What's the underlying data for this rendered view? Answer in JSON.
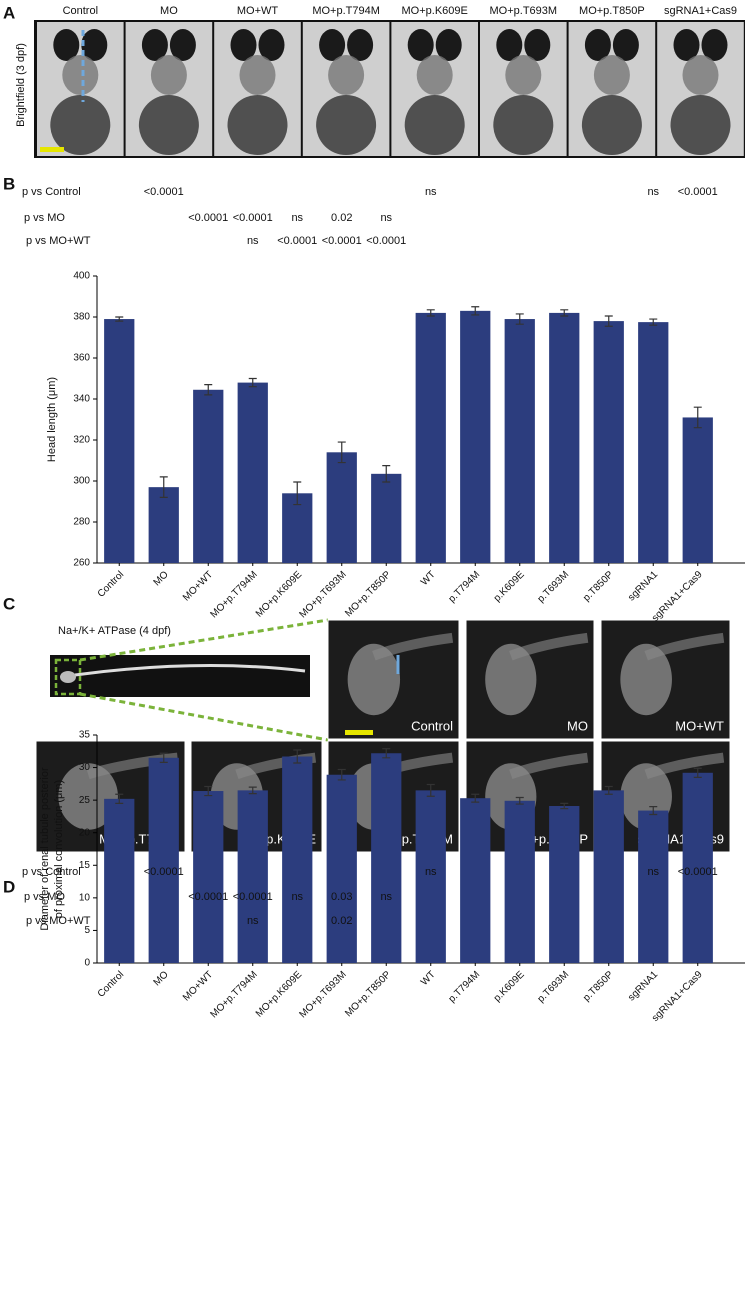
{
  "panel_a": {
    "letter": "A",
    "ylabel": "Brightfield (3 dpf)",
    "labels": [
      "Control",
      "MO",
      "MO+WT",
      "MO+p.T794M",
      "MO+p.K609E",
      "MO+p.T693M",
      "MO+p.T850P",
      "sgRNA1+Cas9"
    ]
  },
  "panel_c": {
    "letter": "C",
    "title": "Na+/K+ ATPase (4 dpf)",
    "labels": [
      "Control",
      "MO",
      "MO+WT",
      "MO+p.T794M",
      "MO+p.K609E",
      "MO+p.T693M",
      "MO+p.T850P",
      "sgRNA1+Cas9"
    ]
  },
  "chart_data": [
    {
      "type": "bar",
      "panel": "B",
      "ylabel": [
        "Head length (μm)"
      ],
      "categories": [
        "Control",
        "MO",
        "MO+WT",
        "MO+p.T794M",
        "MO+p.K609E",
        "MO+p.T693M",
        "MO+p.T850P",
        "WT",
        "p.T794M",
        "p.K609E",
        "p.T693M",
        "p.T850P",
        "sgRNA1",
        "sgRNA1+Cas9"
      ],
      "values": [
        379,
        297,
        344.5,
        348,
        294,
        314,
        303.5,
        382,
        383,
        379,
        382,
        378,
        377.5,
        331
      ],
      "errors": [
        1,
        5,
        2.5,
        2,
        5.5,
        5,
        4,
        1.5,
        2,
        2.5,
        1.5,
        2.5,
        1.5,
        5
      ],
      "color": "#2c3d7e",
      "ylim": [
        260,
        400
      ],
      "yticks": [
        260,
        280,
        300,
        320,
        340,
        360,
        380,
        400
      ],
      "p_values": [
        {
          "label": "p vs Control",
          "values": [
            null,
            "<0.0001",
            null,
            null,
            null,
            null,
            null,
            "ns",
            null,
            null,
            null,
            null,
            "ns",
            "<0.0001"
          ]
        },
        {
          "label": "p vs MO",
          "values": [
            null,
            null,
            "<0.0001",
            "<0.0001",
            "ns",
            "0.02",
            "ns",
            null,
            null,
            null,
            null,
            null,
            null,
            null
          ]
        },
        {
          "label": "p vs MO+WT",
          "values": [
            null,
            null,
            null,
            "ns",
            "<0.0001",
            "<0.0001",
            "<0.0001",
            null,
            null,
            null,
            null,
            null,
            null,
            null
          ]
        }
      ]
    },
    {
      "type": "bar",
      "panel": "D",
      "ylabel": [
        "Diameter of renal tubule posterior",
        "of proximal convolution (μm)"
      ],
      "categories": [
        "Control",
        "MO",
        "MO+WT",
        "MO+p.T794M",
        "MO+p.K609E",
        "MO+p.T693M",
        "MO+p.T850P",
        "WT",
        "p.T794M",
        "p.K609E",
        "p.T693M",
        "p.T850P",
        "sgRNA1",
        "sgRNA1+Cas9"
      ],
      "values": [
        25.2,
        31.5,
        26.4,
        26.5,
        31.7,
        28.9,
        32.2,
        26.5,
        25.3,
        24.9,
        24.1,
        26.5,
        23.4,
        29.2
      ],
      "errors": [
        0.7,
        0.7,
        0.7,
        0.5,
        1,
        0.8,
        0.7,
        0.9,
        0.6,
        0.5,
        0.4,
        0.6,
        0.6,
        0.7
      ],
      "color": "#2c3d7e",
      "ylim": [
        0,
        35
      ],
      "yticks": [
        0,
        5,
        10,
        15,
        20,
        25,
        30,
        35
      ],
      "p_values": [
        {
          "label": "p vs Control",
          "values": [
            null,
            "<0.0001",
            null,
            null,
            null,
            null,
            null,
            "ns",
            null,
            null,
            null,
            null,
            "ns",
            "<0.0001"
          ]
        },
        {
          "label": "p vs MO",
          "values": [
            null,
            null,
            "<0.0001",
            "<0.0001",
            "ns",
            "0.03",
            "ns",
            null,
            null,
            null,
            null,
            null,
            null,
            null
          ]
        },
        {
          "label": "p vs MO+WT",
          "values": [
            null,
            null,
            null,
            "ns",
            null,
            "0.02",
            null,
            null,
            null,
            null,
            null,
            null,
            null,
            null
          ]
        }
      ]
    }
  ]
}
